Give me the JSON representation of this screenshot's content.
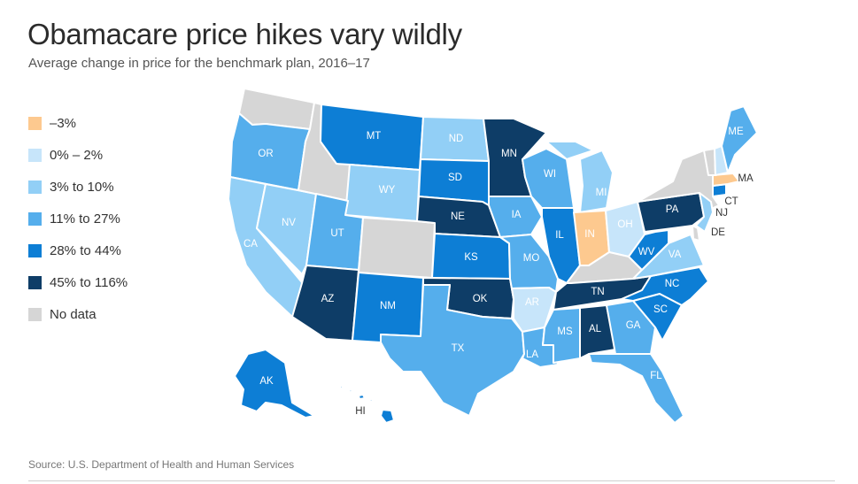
{
  "title": "Obamacare price hikes vary wildly",
  "subtitle": "Average change in price for the benchmark plan, 2016–17",
  "source": "Source: U.S. Department of Health and Human Services",
  "legend": [
    {
      "label": "–3%",
      "color": "#fdc98f"
    },
    {
      "label": "0% – 2%",
      "color": "#c7e5fa"
    },
    {
      "label": "3% to 10%",
      "color": "#92cff6"
    },
    {
      "label": "11% to 27%",
      "color": "#55aeec"
    },
    {
      "label": "28% to 44%",
      "color": "#0d7ed5"
    },
    {
      "label": "45% to 116%",
      "color": "#0e3d67"
    },
    {
      "label": "No data",
      "color": "#d6d6d6"
    }
  ],
  "states": {
    "WA": {
      "label": "",
      "category": "No data"
    },
    "OR": {
      "label": "OR",
      "category": "11% to 27%"
    },
    "CA": {
      "label": "CA",
      "category": "3% to 10%"
    },
    "NV": {
      "label": "NV",
      "category": "3% to 10%"
    },
    "ID": {
      "label": "",
      "category": "No data"
    },
    "MT": {
      "label": "MT",
      "category": "28% to 44%"
    },
    "WY": {
      "label": "WY",
      "category": "3% to 10%"
    },
    "UT": {
      "label": "UT",
      "category": "11% to 27%"
    },
    "AZ": {
      "label": "AZ",
      "category": "45% to 116%"
    },
    "CO": {
      "label": "",
      "category": "No data"
    },
    "NM": {
      "label": "NM",
      "category": "28% to 44%"
    },
    "ND": {
      "label": "ND",
      "category": "3% to 10%"
    },
    "SD": {
      "label": "SD",
      "category": "28% to 44%"
    },
    "NE": {
      "label": "NE",
      "category": "45% to 116%"
    },
    "KS": {
      "label": "KS",
      "category": "28% to 44%"
    },
    "OK": {
      "label": "OK",
      "category": "45% to 116%"
    },
    "TX": {
      "label": "TX",
      "category": "11% to 27%"
    },
    "MN": {
      "label": "MN",
      "category": "45% to 116%"
    },
    "IA": {
      "label": "IA",
      "category": "11% to 27%"
    },
    "MO": {
      "label": "MO",
      "category": "11% to 27%"
    },
    "AR": {
      "label": "AR",
      "category": "0% – 2%"
    },
    "LA": {
      "label": "LA",
      "category": "11% to 27%"
    },
    "WI": {
      "label": "WI",
      "category": "11% to 27%"
    },
    "IL": {
      "label": "IL",
      "category": "28% to 44%"
    },
    "MI": {
      "label": "MI",
      "category": "3% to 10%"
    },
    "IN": {
      "label": "IN",
      "category": "–3%"
    },
    "OH": {
      "label": "OH",
      "category": "0% – 2%"
    },
    "KY": {
      "label": "",
      "category": "No data"
    },
    "TN": {
      "label": "TN",
      "category": "45% to 116%"
    },
    "MS": {
      "label": "MS",
      "category": "11% to 27%"
    },
    "AL": {
      "label": "AL",
      "category": "45% to 116%"
    },
    "GA": {
      "label": "GA",
      "category": "11% to 27%"
    },
    "FL": {
      "label": "FL",
      "category": "11% to 27%"
    },
    "SC": {
      "label": "SC",
      "category": "28% to 44%"
    },
    "NC": {
      "label": "NC",
      "category": "28% to 44%"
    },
    "VA": {
      "label": "VA",
      "category": "3% to 10%"
    },
    "WV": {
      "label": "WV",
      "category": "28% to 44%"
    },
    "PA": {
      "label": "PA",
      "category": "45% to 116%"
    },
    "NY": {
      "label": "",
      "category": "No data"
    },
    "NJ": {
      "label": "NJ",
      "category": "3% to 10%"
    },
    "DE": {
      "label": "DE",
      "category": "No data"
    },
    "CT": {
      "label": "CT",
      "category": "28% to 44%"
    },
    "MA": {
      "label": "MA",
      "category": "–3%"
    },
    "VT": {
      "label": "",
      "category": "No data"
    },
    "NH": {
      "label": "",
      "category": "0% – 2%"
    },
    "ME": {
      "label": "ME",
      "category": "11% to 27%"
    },
    "AK": {
      "label": "AK",
      "category": "28% to 44%"
    },
    "HI": {
      "label": "HI",
      "category": "28% to 44%"
    }
  }
}
